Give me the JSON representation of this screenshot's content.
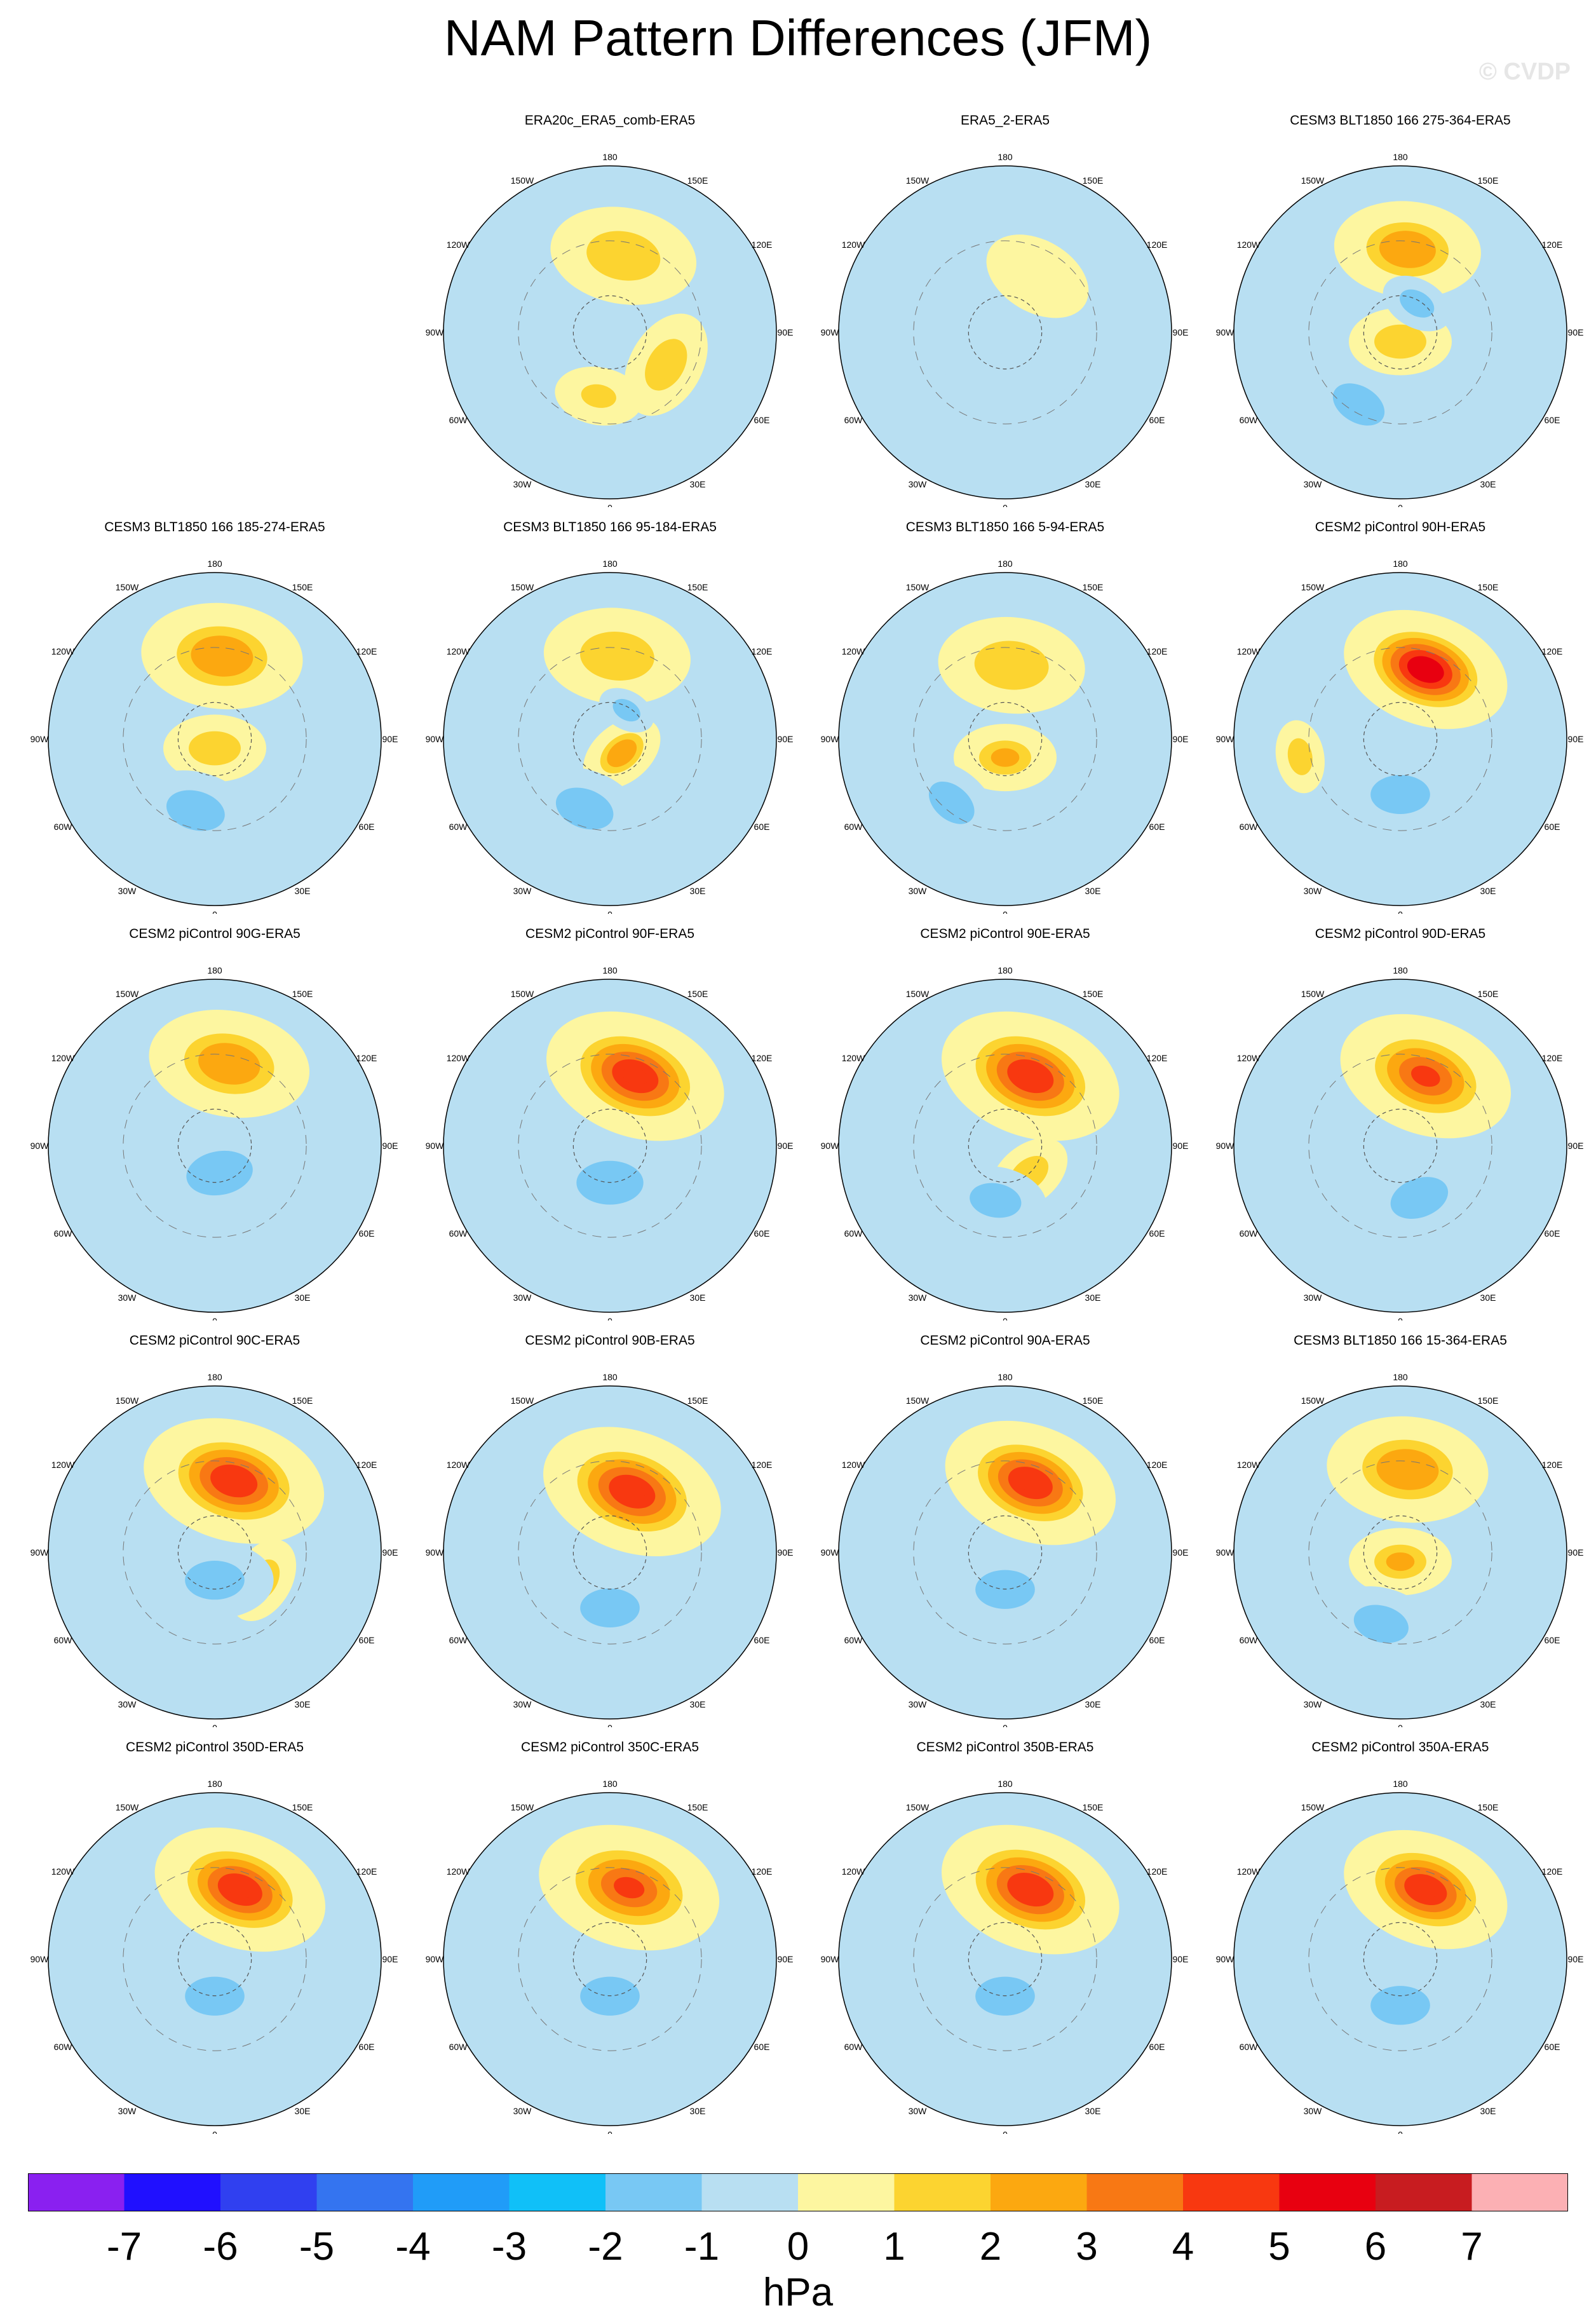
{
  "figure": {
    "title": "NAM Pattern Differences (JFM)",
    "watermark": "© CVDP",
    "units": "hPa"
  },
  "lon_labels": [
    "180",
    "150E",
    "120E",
    "90E",
    "60E",
    "30E",
    "0",
    "30W",
    "60W",
    "90W",
    "120W",
    "150W"
  ],
  "chart_data": {
    "type": "polar-contour-map",
    "projection": "north polar stereographic",
    "field": "NAM pattern difference (model minus ERA5)",
    "colorbar": {
      "levels": [
        -7,
        -6,
        -5,
        -4,
        -3,
        -2,
        -1,
        0,
        1,
        2,
        3,
        4,
        5,
        6,
        7
      ],
      "tick_labels": [
        "-7",
        "-6",
        "-5",
        "-4",
        "-3",
        "-2",
        "-1",
        "0",
        "1",
        "2",
        "3",
        "4",
        "5",
        "6",
        "7"
      ],
      "colors": [
        "#8a20f0",
        "#2010ff",
        "#3040f0",
        "#3474f0",
        "#209cf8",
        "#10c0f8",
        "#78c8f4",
        "#b8dff2",
        "#fdf6a0",
        "#fcd430",
        "#fca810",
        "#f87814",
        "#f83810",
        "#e80010",
        "#c81c20",
        "#fcb0b4"
      ]
    },
    "panels": [
      {
        "title": "ERA20c_ERA5_comb-ERA5",
        "features": [
          {
            "lon": 170,
            "lat": 48,
            "r": 0.2,
            "value": 1.5
          },
          {
            "lon": 60,
            "lat": 55,
            "r": 0.15,
            "value": 1.2
          },
          {
            "lon": -10,
            "lat": 55,
            "r": 0.12,
            "value": 1.0
          }
        ]
      },
      {
        "title": "ERA5_2-ERA5",
        "features": [
          {
            "lon": 10,
            "lat": 70,
            "r": 0.18,
            "value": -0.8
          },
          {
            "lon": 150,
            "lat": 55,
            "r": 0.15,
            "value": 0.5
          }
        ]
      },
      {
        "title": "CESM3 BLT1850 166 275-364-ERA5",
        "features": [
          {
            "lon": 175,
            "lat": 45,
            "r": 0.2,
            "value": 2.2
          },
          {
            "lon": 0,
            "lat": 85,
            "r": 0.14,
            "value": 1.8
          },
          {
            "lon": -30,
            "lat": 45,
            "r": 0.15,
            "value": -1.5
          },
          {
            "lon": 150,
            "lat": 72,
            "r": 0.1,
            "value": -1.2
          }
        ]
      },
      {
        "title": "CESM3 BLT1850 166 185-274-ERA5",
        "features": [
          {
            "lon": 175,
            "lat": 45,
            "r": 0.22,
            "value": 2.3
          },
          {
            "lon": 0,
            "lat": 85,
            "r": 0.14,
            "value": 1.6
          },
          {
            "lon": -15,
            "lat": 50,
            "r": 0.16,
            "value": -1.5
          }
        ]
      },
      {
        "title": "CESM3 BLT1850 166 95-184-ERA5",
        "features": [
          {
            "lon": 175,
            "lat": 45,
            "r": 0.2,
            "value": 1.7
          },
          {
            "lon": 40,
            "lat": 80,
            "r": 0.12,
            "value": 2.1
          },
          {
            "lon": -20,
            "lat": 50,
            "r": 0.16,
            "value": -1.5
          },
          {
            "lon": 150,
            "lat": 72,
            "r": 0.08,
            "value": -2.0
          }
        ]
      },
      {
        "title": "CESM3 BLT1850 166 5-94-ERA5",
        "features": [
          {
            "lon": 175,
            "lat": 50,
            "r": 0.2,
            "value": 1.6
          },
          {
            "lon": 0,
            "lat": 80,
            "r": 0.14,
            "value": 2.0
          },
          {
            "lon": -40,
            "lat": 45,
            "r": 0.14,
            "value": -1.6
          }
        ]
      },
      {
        "title": "CESM2 piControl 90H-ERA5",
        "features": [
          {
            "lon": 160,
            "lat": 50,
            "r": 0.23,
            "value": 5.2
          },
          {
            "lon": 0,
            "lat": 60,
            "r": 0.16,
            "value": -1.5
          },
          {
            "lon": -80,
            "lat": 35,
            "r": 0.1,
            "value": 1.5
          }
        ]
      },
      {
        "title": "CESM2 piControl 90G-ERA5",
        "features": [
          {
            "lon": 170,
            "lat": 45,
            "r": 0.22,
            "value": 2.7
          },
          {
            "lon": 10,
            "lat": 75,
            "r": 0.18,
            "value": -1.5
          }
        ]
      },
      {
        "title": "CESM2 piControl 90F-ERA5",
        "features": [
          {
            "lon": 160,
            "lat": 50,
            "r": 0.25,
            "value": 4.5
          },
          {
            "lon": 0,
            "lat": 70,
            "r": 0.18,
            "value": -1.5
          }
        ]
      },
      {
        "title": "CESM2 piControl 90E-ERA5",
        "features": [
          {
            "lon": 160,
            "lat": 50,
            "r": 0.25,
            "value": 4.2
          },
          {
            "lon": 40,
            "lat": 70,
            "r": 0.12,
            "value": 1.6
          },
          {
            "lon": -10,
            "lat": 60,
            "r": 0.14,
            "value": -1.5
          }
        ]
      },
      {
        "title": "CESM2 piControl 90D-ERA5",
        "features": [
          {
            "lon": 160,
            "lat": 50,
            "r": 0.24,
            "value": 4.0
          },
          {
            "lon": 20,
            "lat": 60,
            "r": 0.16,
            "value": -1.8
          }
        ]
      },
      {
        "title": "CESM2 piControl 90C-ERA5",
        "features": [
          {
            "lon": 165,
            "lat": 50,
            "r": 0.25,
            "value": 4.3
          },
          {
            "lon": 60,
            "lat": 60,
            "r": 0.12,
            "value": 1.5
          },
          {
            "lon": 0,
            "lat": 75,
            "r": 0.16,
            "value": -1.5
          }
        ]
      },
      {
        "title": "CESM2 piControl 90B-ERA5",
        "features": [
          {
            "lon": 160,
            "lat": 55,
            "r": 0.25,
            "value": 4.6
          },
          {
            "lon": 0,
            "lat": 60,
            "r": 0.16,
            "value": -1.5
          }
        ]
      },
      {
        "title": "CESM2 piControl 90A-ERA5",
        "features": [
          {
            "lon": 160,
            "lat": 50,
            "r": 0.24,
            "value": 4.2
          },
          {
            "lon": 0,
            "lat": 70,
            "r": 0.16,
            "value": -1.2
          }
        ]
      },
      {
        "title": "CESM3 BLT1850 166 15-364-ERA5",
        "features": [
          {
            "lon": 175,
            "lat": 45,
            "r": 0.22,
            "value": 2.1
          },
          {
            "lon": 0,
            "lat": 85,
            "r": 0.14,
            "value": 2.0
          },
          {
            "lon": -15,
            "lat": 50,
            "r": 0.15,
            "value": -1.5
          }
        ]
      },
      {
        "title": "CESM2 piControl 350D-ERA5",
        "features": [
          {
            "lon": 160,
            "lat": 50,
            "r": 0.24,
            "value": 4.3
          },
          {
            "lon": 0,
            "lat": 70,
            "r": 0.16,
            "value": -1.3
          }
        ]
      },
      {
        "title": "CESM2 piControl 350C-ERA5",
        "features": [
          {
            "lon": 165,
            "lat": 50,
            "r": 0.25,
            "value": 4.0
          },
          {
            "lon": 0,
            "lat": 70,
            "r": 0.16,
            "value": -1.3
          }
        ]
      },
      {
        "title": "CESM2 piControl 350B-ERA5",
        "features": [
          {
            "lon": 160,
            "lat": 50,
            "r": 0.25,
            "value": 4.1
          },
          {
            "lon": 0,
            "lat": 70,
            "r": 0.16,
            "value": -1.2
          }
        ]
      },
      {
        "title": "CESM2 piControl 350A-ERA5",
        "features": [
          {
            "lon": 160,
            "lat": 50,
            "r": 0.23,
            "value": 4.6
          },
          {
            "lon": 0,
            "lat": 65,
            "r": 0.16,
            "value": -1.6
          }
        ]
      }
    ]
  }
}
